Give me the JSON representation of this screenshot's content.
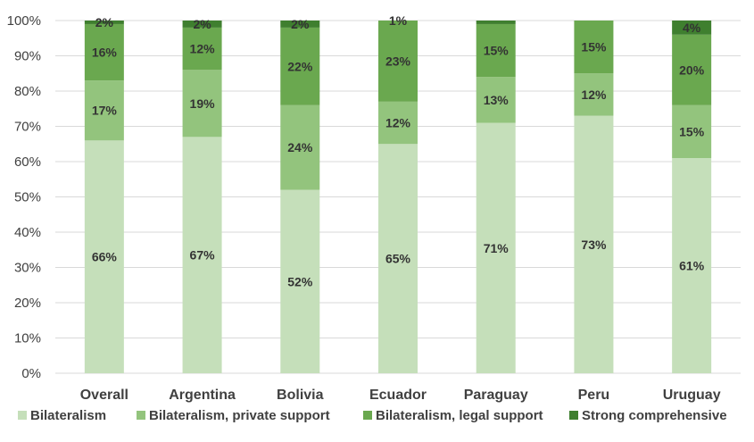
{
  "chart_data": {
    "type": "bar",
    "stacked": true,
    "categories": [
      "Overall",
      "Argentina",
      "Bolivia",
      "Ecuador",
      "Paraguay",
      "Peru",
      "Uruguay"
    ],
    "series": [
      {
        "name": "Bilateralism",
        "color": "#c5dfba",
        "values": [
          66,
          67,
          52,
          65,
          71,
          73,
          61
        ],
        "labels": [
          "66%",
          "67%",
          "52%",
          "65%",
          "71%",
          "73%",
          "61%"
        ]
      },
      {
        "name": "Bilateralism, private support",
        "color": "#93c47d",
        "values": [
          17,
          19,
          24,
          12,
          13,
          12,
          15
        ],
        "labels": [
          "17%",
          "19%",
          "24%",
          "12%",
          "13%",
          "12%",
          "15%"
        ]
      },
      {
        "name": "Bilateralism, legal support",
        "color": "#6aa84f",
        "values": [
          16,
          12,
          22,
          23,
          15,
          15,
          20
        ],
        "labels": [
          "16%",
          "12%",
          "22%",
          "23%",
          "15%",
          "15%",
          "20%"
        ]
      },
      {
        "name": "Strong comprehensive",
        "color": "#3f7f2f",
        "values": [
          2,
          2,
          2,
          1,
          1,
          0,
          4
        ],
        "labels": [
          "2%",
          "2%",
          "2%",
          "1%",
          "",
          "",
          "4%"
        ]
      }
    ],
    "yticks": [
      "0%",
      "10%",
      "20%",
      "30%",
      "40%",
      "50%",
      "60%",
      "70%",
      "80%",
      "90%",
      "100%"
    ],
    "ylim": [
      0,
      100
    ],
    "grid": true,
    "legend": "bottom"
  }
}
